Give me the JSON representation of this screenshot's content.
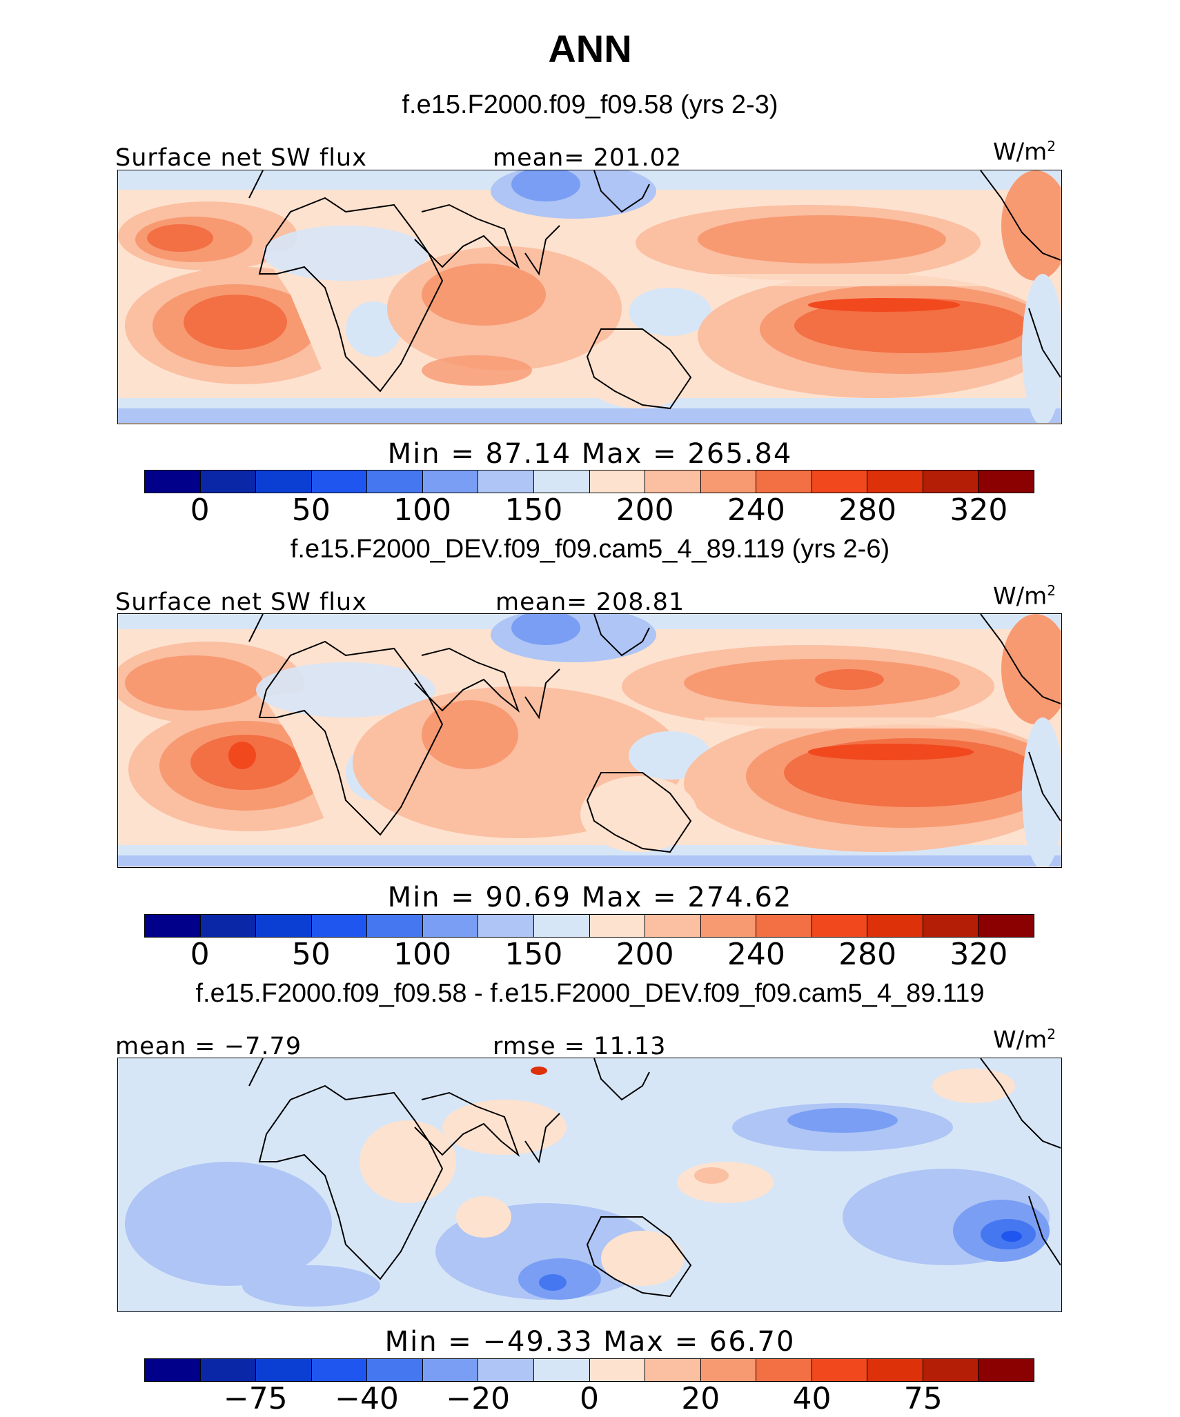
{
  "title": "ANN",
  "colorbar": {
    "colors": [
      "#00008b",
      "#0a27a8",
      "#0b3fd4",
      "#1f56f0",
      "#4477f0",
      "#7a9ef4",
      "#aec5f5",
      "#d7e6f7",
      "#fde2cf",
      "#fbbfa2",
      "#f79a72",
      "#f36f44",
      "#f1481e",
      "#dc3109",
      "#b41d06",
      "#8b0000"
    ]
  },
  "panels": [
    {
      "case_title": "f.e15.F2000.f09_f09.58 (yrs 2-3)",
      "variable": "Surface net SW flux",
      "stat_label": "mean= 201.02",
      "units": "W/m",
      "units_sup": "2",
      "minmax": "Min =   87.14 Max = 265.84",
      "ticks": [
        "0",
        "50",
        "100",
        "150",
        "200",
        "240",
        "280",
        "320"
      ]
    },
    {
      "case_title": "f.e15.F2000_DEV.f09_f09.cam5_4_89.119 (yrs 2-6)",
      "variable": "Surface net SW flux",
      "stat_label": "mean= 208.81",
      "units": "W/m",
      "units_sup": "2",
      "minmax": "Min =   90.69 Max = 274.62",
      "ticks": [
        "0",
        "50",
        "100",
        "150",
        "200",
        "240",
        "280",
        "320"
      ]
    },
    {
      "case_title": "f.e15.F2000.f09_f09.58 - f.e15.F2000_DEV.f09_f09.cam5_4_89.119",
      "variable": "mean =  −7.79",
      "stat_label": "rmse =   11.13",
      "units": "W/m",
      "units_sup": "2",
      "minmax": "Min = −49.33 Max =   66.70",
      "ticks": [
        "−75",
        "−40",
        "−20",
        "0",
        "20",
        "40",
        "75"
      ]
    }
  ]
}
